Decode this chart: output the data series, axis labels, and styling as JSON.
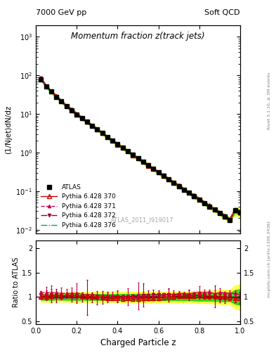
{
  "title": "Momentum fraction z(track jets)",
  "top_left_label": "7000 GeV pp",
  "top_right_label": "Soft QCD",
  "ylabel_main": "(1/Njet)dN/dz",
  "ylabel_ratio": "Ratio to ATLAS",
  "xlabel": "Charged Particle z",
  "right_label_main": "Rivet 3.1.10, ≥ 3M events",
  "right_label_ratio": "mcplots.cern.ch [arXiv:1306.3436]",
  "watermark": "ATLAS_2011_I919017",
  "ylim_main": [
    0.008,
    2000
  ],
  "ylim_ratio": [
    0.45,
    2.15
  ],
  "xlim": [
    0.0,
    1.0
  ],
  "z_values": [
    0.025,
    0.05,
    0.075,
    0.1,
    0.125,
    0.15,
    0.175,
    0.2,
    0.225,
    0.25,
    0.275,
    0.3,
    0.325,
    0.35,
    0.375,
    0.4,
    0.425,
    0.45,
    0.475,
    0.5,
    0.525,
    0.55,
    0.575,
    0.6,
    0.625,
    0.65,
    0.675,
    0.7,
    0.725,
    0.75,
    0.775,
    0.8,
    0.825,
    0.85,
    0.875,
    0.9,
    0.925,
    0.95,
    0.975,
    1.0
  ],
  "atlas_y": [
    80,
    52,
    38,
    28,
    21,
    16,
    12.5,
    9.8,
    7.8,
    6.2,
    5.0,
    4.0,
    3.2,
    2.55,
    2.05,
    1.65,
    1.33,
    1.08,
    0.87,
    0.7,
    0.57,
    0.46,
    0.375,
    0.305,
    0.248,
    0.202,
    0.165,
    0.135,
    0.11,
    0.09,
    0.073,
    0.06,
    0.049,
    0.04,
    0.033,
    0.027,
    0.022,
    0.018,
    0.032,
    0.028
  ],
  "atlas_yerr": [
    3.0,
    2.0,
    1.5,
    1.0,
    0.8,
    0.6,
    0.5,
    0.4,
    0.3,
    0.25,
    0.2,
    0.16,
    0.13,
    0.1,
    0.08,
    0.07,
    0.055,
    0.045,
    0.036,
    0.03,
    0.024,
    0.02,
    0.016,
    0.013,
    0.011,
    0.009,
    0.007,
    0.006,
    0.005,
    0.004,
    0.0035,
    0.003,
    0.0025,
    0.002,
    0.0018,
    0.0015,
    0.0013,
    0.001,
    0.003,
    0.003
  ],
  "py370_color": "#cc0000",
  "py371_color": "#cc0055",
  "py372_color": "#990033",
  "py376_color": "#009999",
  "band_yellow": "#ffff00",
  "band_green": "#00cc00",
  "legend_entries": [
    "ATLAS",
    "Pythia 6.428 370",
    "Pythia 6.428 371",
    "Pythia 6.428 372",
    "Pythia 6.428 376"
  ]
}
